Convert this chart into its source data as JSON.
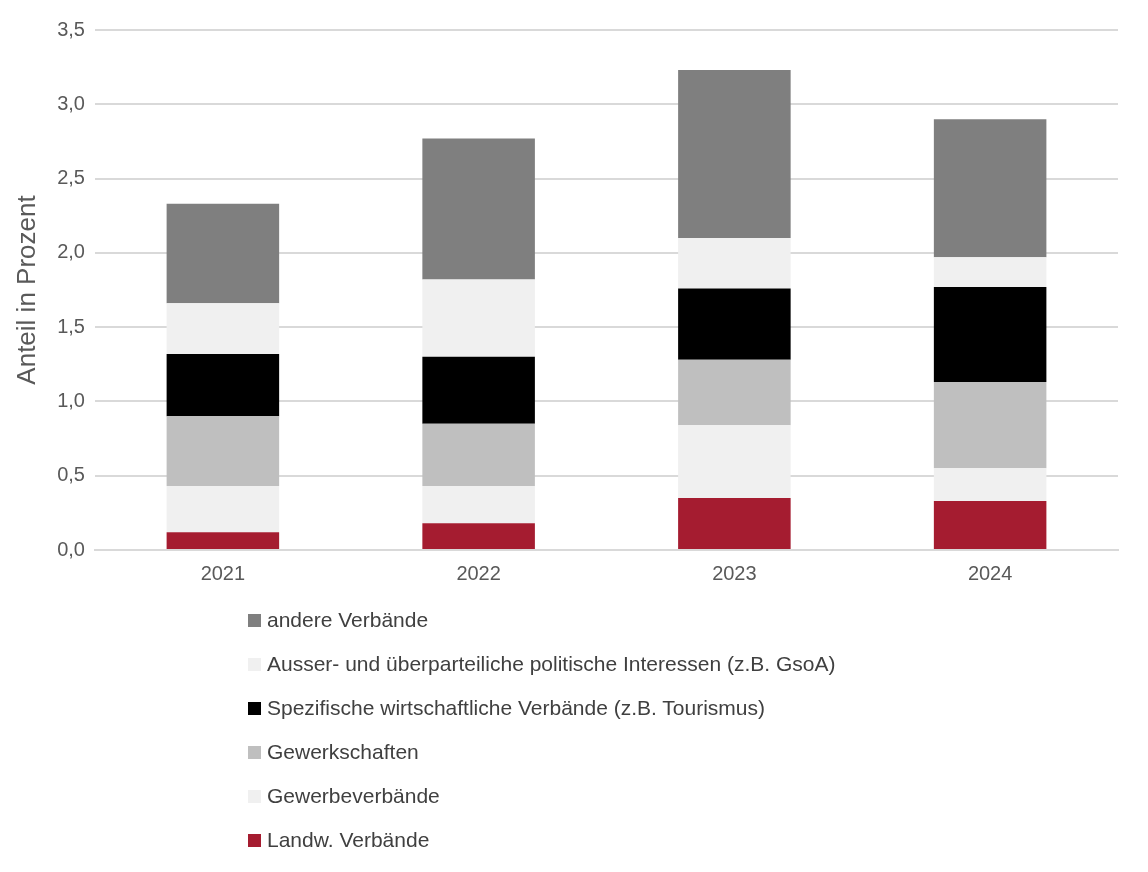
{
  "chart_data": {
    "type": "bar",
    "ylabel": "Anteil in Prozent",
    "categories": [
      "2021",
      "2022",
      "2023",
      "2024"
    ],
    "stacked": true,
    "grid": "y",
    "legend": "bottom",
    "ylim": [
      0,
      3.5
    ],
    "yticks": [
      {
        "value": 0,
        "label": "0,0"
      },
      {
        "value": 0.5,
        "label": "0,5"
      },
      {
        "value": 1,
        "label": "1,0"
      },
      {
        "value": 1.5,
        "label": "1,5"
      },
      {
        "value": 2,
        "label": "2,0"
      },
      {
        "value": 2.5,
        "label": "2,5"
      },
      {
        "value": 3,
        "label": "3,0"
      },
      {
        "value": 3.5,
        "label": "3,5"
      }
    ],
    "series": [
      {
        "name": "Landw. Verbände",
        "color": "#a51c30",
        "values": [
          0.12,
          0.18,
          0.35,
          0.33
        ]
      },
      {
        "name": "Gewerbeverbände",
        "color": "#f0f0f0",
        "values": [
          0.31,
          0.25,
          0.49,
          0.22
        ]
      },
      {
        "name": "Gewerkschaften",
        "color": "#bfbfbf",
        "values": [
          0.47,
          0.42,
          0.44,
          0.58
        ]
      },
      {
        "name": "Spezifische wirtschaftliche Verbände (z.B. Tourismus)",
        "color": "#000000",
        "values": [
          0.42,
          0.45,
          0.48,
          0.64
        ]
      },
      {
        "name": "Ausser- und überparteiliche politische Interessen (z.B. GsoA)",
        "color": "#f0f0f0",
        "values": [
          0.34,
          0.52,
          0.34,
          0.2
        ]
      },
      {
        "name": "andere Verbände",
        "color": "#7f7f7f",
        "values": [
          0.67,
          0.95,
          1.13,
          0.93
        ]
      }
    ]
  }
}
